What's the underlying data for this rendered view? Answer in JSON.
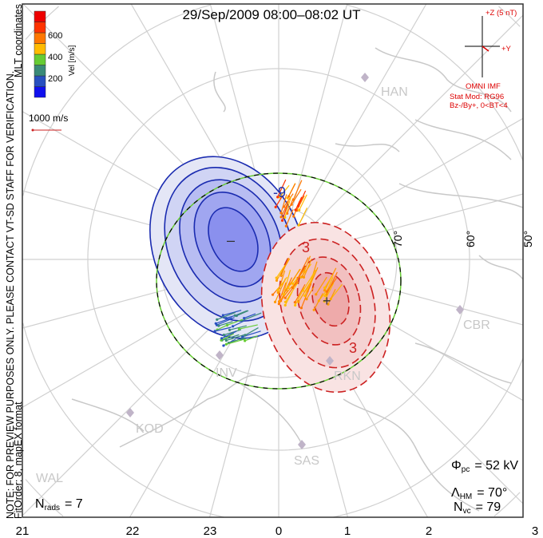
{
  "title": "29/Sep/2009 08:00–08:02 UT",
  "side_note": {
    "line1": "NOTE: FOR PREVIEW PURPOSES ONLY. PLEASE CONTACT VT-SD STAFF FOR VERIFICATION.",
    "line2_left": "FitOrder: 8, mapEX format",
    "line2_right": "MLT coordinates"
  },
  "colorbar": {
    "label": "Vel [m/s]",
    "ticks": [
      "600",
      "400",
      "200"
    ],
    "colors": [
      "#1010ee",
      "#2850c0",
      "#3a8a78",
      "#66cc33",
      "#ffbb00",
      "#ff7700",
      "#ff3300",
      "#ee0000"
    ]
  },
  "scale_vector": {
    "label": "1000 m/s",
    "color": "#cc2222"
  },
  "imf": {
    "z_label": "+Z (5 nT)",
    "y_label": "+Y",
    "source": "OMNI IMF",
    "stat_mod": "Stat Mod: RG96",
    "condition": "Bz-/By+, 0<BT<4",
    "color": "#dd0000"
  },
  "contours": {
    "neg_label": "-9",
    "pos_label": "3",
    "pos_label2": "3",
    "min_marker": "–",
    "max_marker": "+"
  },
  "lat_labels": [
    "70°",
    "60°",
    "50°"
  ],
  "mlt_labels": [
    "21",
    "22",
    "23",
    "0",
    "1",
    "2",
    "3"
  ],
  "stations": [
    "HAN",
    "INV",
    "RKN",
    "CBR",
    "KOD",
    "SAS",
    "WAL"
  ],
  "stats": {
    "phi_pc": "Φ",
    "phi_sub": "pc",
    "phi_val": "= 52 kV",
    "lambda": "Λ",
    "lambda_sub": "HM",
    "lambda_val": "= 70°",
    "nvc": "N",
    "nvc_sub": "vc",
    "nvc_val": "= 79",
    "nrads": "N",
    "nrads_sub": "rads",
    "nrads_val": "= 7"
  }
}
